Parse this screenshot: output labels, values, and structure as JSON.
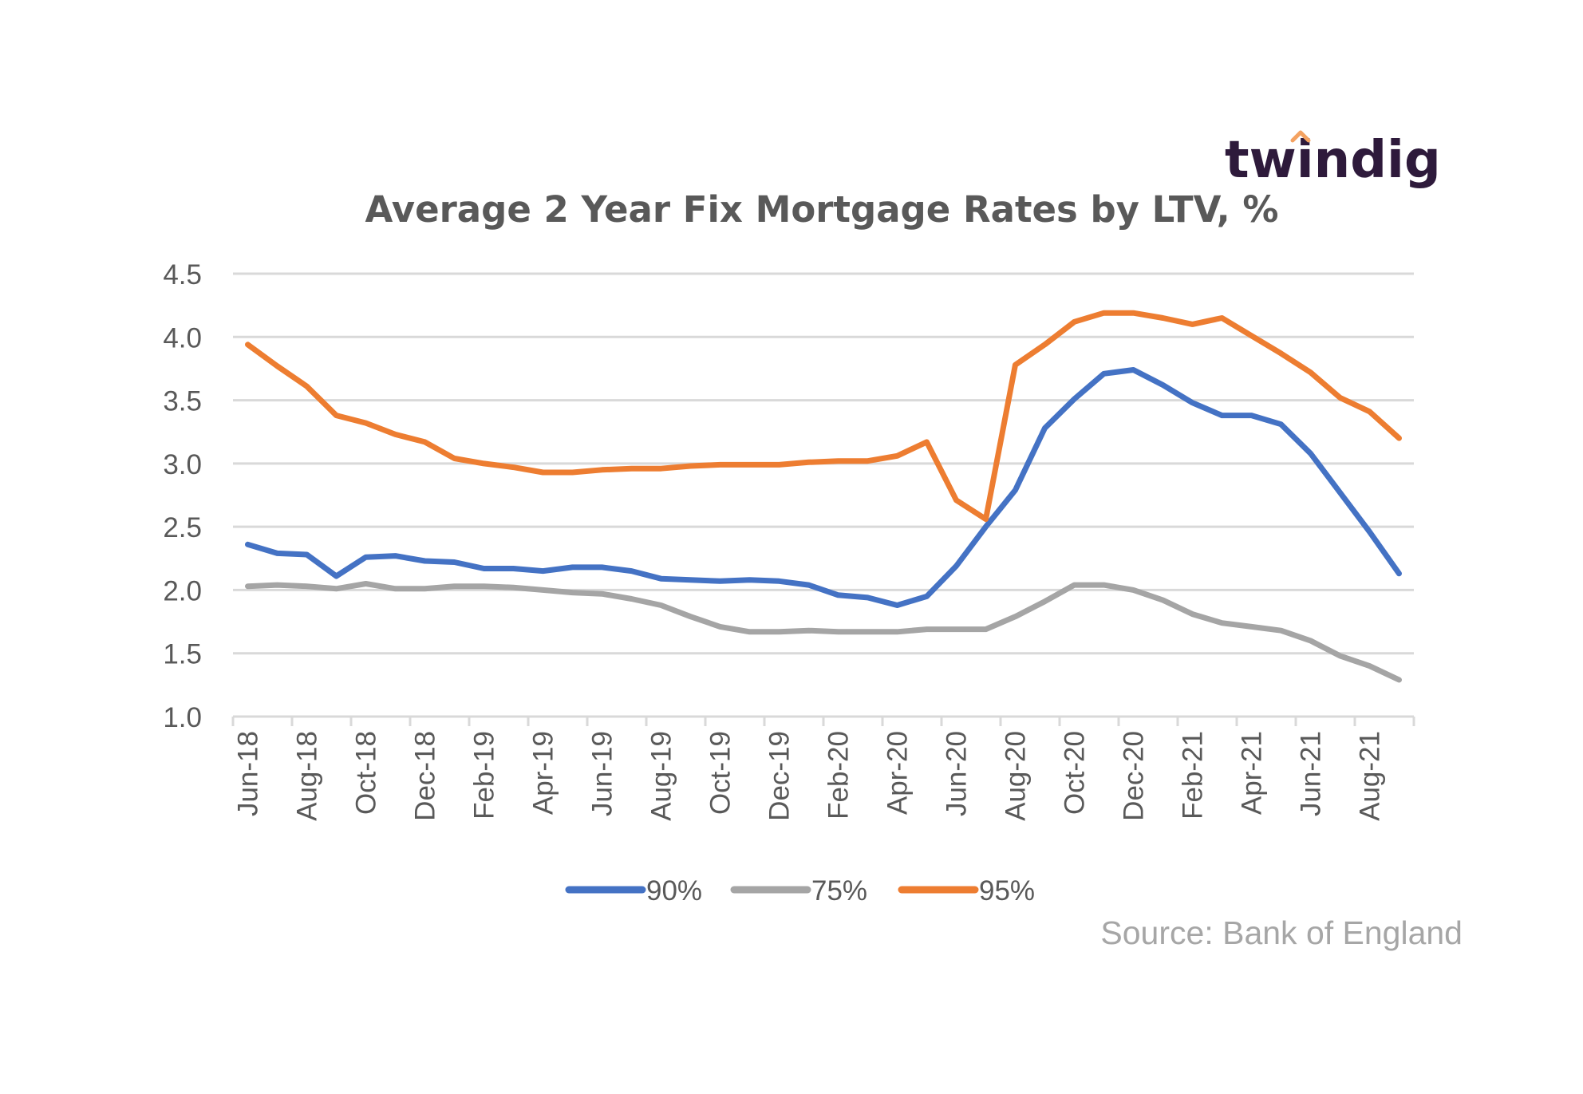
{
  "brand": {
    "logo_text": "twindig",
    "accent_color": "#F4A261",
    "text_color": "#2E1A3B"
  },
  "source_note": "Source: Bank of England",
  "chart_data": {
    "type": "line",
    "title": "Average 2 Year Fix Mortgage Rates by LTV, %",
    "xlabel": "",
    "ylabel": "",
    "ylim": [
      1.0,
      4.5
    ],
    "yticks": [
      "1.0",
      "1.5",
      "2.0",
      "2.5",
      "3.0",
      "3.5",
      "4.0",
      "4.5"
    ],
    "grid": true,
    "legend_position": "bottom",
    "x": [
      "Jun-18",
      "Jul-18",
      "Aug-18",
      "Sep-18",
      "Oct-18",
      "Nov-18",
      "Dec-18",
      "Jan-19",
      "Feb-19",
      "Mar-19",
      "Apr-19",
      "May-19",
      "Jun-19",
      "Jul-19",
      "Aug-19",
      "Sep-19",
      "Oct-19",
      "Nov-19",
      "Dec-19",
      "Jan-20",
      "Feb-20",
      "Mar-20",
      "Apr-20",
      "May-20",
      "Jun-20",
      "Jul-20",
      "Aug-20",
      "Sep-20",
      "Oct-20",
      "Nov-20",
      "Dec-20",
      "Jan-21",
      "Feb-21",
      "Mar-21",
      "Apr-21",
      "May-21",
      "Jun-21",
      "Jul-21",
      "Aug-21",
      "Sep-21"
    ],
    "xtick_labels": [
      "Jun-18",
      "Aug-18",
      "Oct-18",
      "Dec-18",
      "Feb-19",
      "Apr-19",
      "Jun-19",
      "Aug-19",
      "Oct-19",
      "Dec-19",
      "Feb-20",
      "Apr-20",
      "Jun-20",
      "Aug-20",
      "Oct-20",
      "Dec-20",
      "Feb-21",
      "Apr-21",
      "Jun-21",
      "Aug-21"
    ],
    "series": [
      {
        "name": "90%",
        "color": "#4472C4",
        "values": [
          2.36,
          2.29,
          2.28,
          2.11,
          2.26,
          2.27,
          2.23,
          2.22,
          2.17,
          2.17,
          2.15,
          2.18,
          2.18,
          2.15,
          2.09,
          2.08,
          2.07,
          2.08,
          2.07,
          2.04,
          1.96,
          1.94,
          1.88,
          1.95,
          2.19,
          2.5,
          2.79,
          3.28,
          3.51,
          3.71,
          3.74,
          3.62,
          3.48,
          3.38,
          3.38,
          3.31,
          3.08,
          2.77,
          2.46,
          2.13
        ]
      },
      {
        "name": "75%",
        "color": "#A5A5A5",
        "values": [
          2.03,
          2.04,
          2.03,
          2.01,
          2.05,
          2.01,
          2.01,
          2.03,
          2.03,
          2.02,
          2.0,
          1.98,
          1.97,
          1.93,
          1.88,
          1.79,
          1.71,
          1.67,
          1.67,
          1.68,
          1.67,
          1.67,
          1.67,
          1.69,
          1.69,
          1.69,
          1.79,
          1.91,
          2.04,
          2.04,
          2.0,
          1.92,
          1.81,
          1.74,
          1.71,
          1.68,
          1.6,
          1.48,
          1.4,
          1.29
        ]
      },
      {
        "name": "95%",
        "color": "#ED7D31",
        "values": [
          3.94,
          3.77,
          3.61,
          3.38,
          3.32,
          3.23,
          3.17,
          3.04,
          3.0,
          2.97,
          2.93,
          2.93,
          2.95,
          2.96,
          2.96,
          2.98,
          2.99,
          2.99,
          2.99,
          3.01,
          3.02,
          3.02,
          3.06,
          3.17,
          2.71,
          2.56,
          3.78,
          3.94,
          4.12,
          4.19,
          4.19,
          4.15,
          4.1,
          4.15,
          4.01,
          3.87,
          3.72,
          3.52,
          3.41,
          3.2
        ]
      }
    ]
  }
}
